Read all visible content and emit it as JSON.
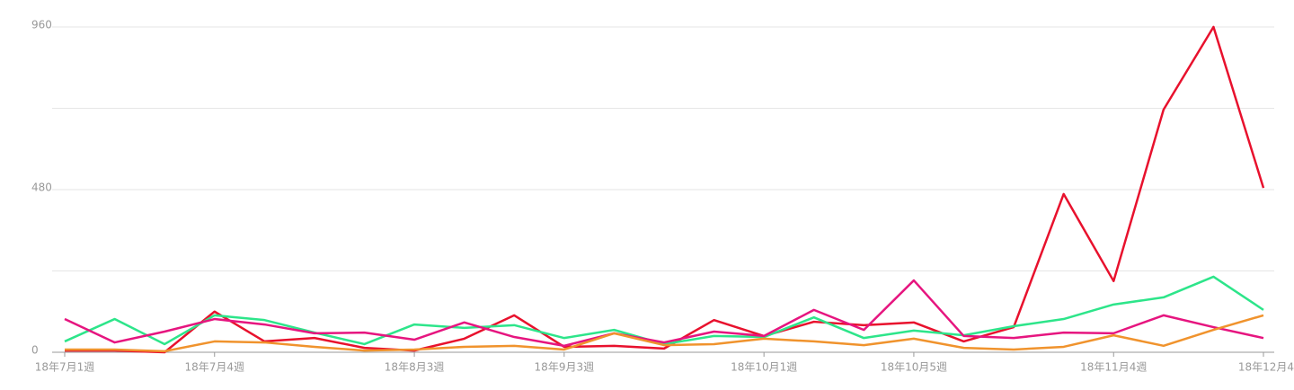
{
  "chart_data": {
    "type": "line",
    "categories": [
      "18年7月1週",
      null,
      null,
      "18年7月4週",
      null,
      null,
      null,
      "18年8月3週",
      null,
      null,
      "18年9月3週",
      null,
      null,
      null,
      "18年10月1週",
      null,
      null,
      "18年10月5週",
      null,
      null,
      null,
      "18年11月4週",
      null,
      null,
      "18年12月4"
    ],
    "series": [
      {
        "color": "#e8112d",
        "values": [
          5,
          5,
          0,
          120,
          32,
          42,
          13,
          5,
          40,
          109,
          16,
          19,
          11,
          95,
          48,
          90,
          80,
          88,
          32,
          74,
          467,
          210,
          716,
          960,
          485
        ]
      },
      {
        "color": "#2de58a",
        "values": [
          32,
          98,
          24,
          109,
          95,
          58,
          24,
          82,
          72,
          80,
          42,
          66,
          24,
          48,
          45,
          103,
          42,
          64,
          50,
          77,
          98,
          141,
          162,
          223,
          125
        ]
      },
      {
        "color": "#e6157f",
        "values": [
          98,
          29,
          61,
          98,
          82,
          56,
          58,
          37,
          88,
          45,
          19,
          56,
          29,
          61,
          48,
          125,
          66,
          212,
          48,
          42,
          58,
          56,
          109,
          74,
          42
        ]
      },
      {
        "color": "#f0932d",
        "values": [
          8,
          8,
          3,
          32,
          29,
          16,
          5,
          8,
          16,
          19,
          8,
          56,
          21,
          24,
          40,
          32,
          21,
          40,
          13,
          8,
          16,
          50,
          19,
          66,
          109
        ]
      }
    ],
    "ylim": [
      0,
      960
    ],
    "yticks": [
      0,
      480,
      960
    ],
    "ygrid_minor": [
      240,
      720
    ],
    "grid": true
  }
}
